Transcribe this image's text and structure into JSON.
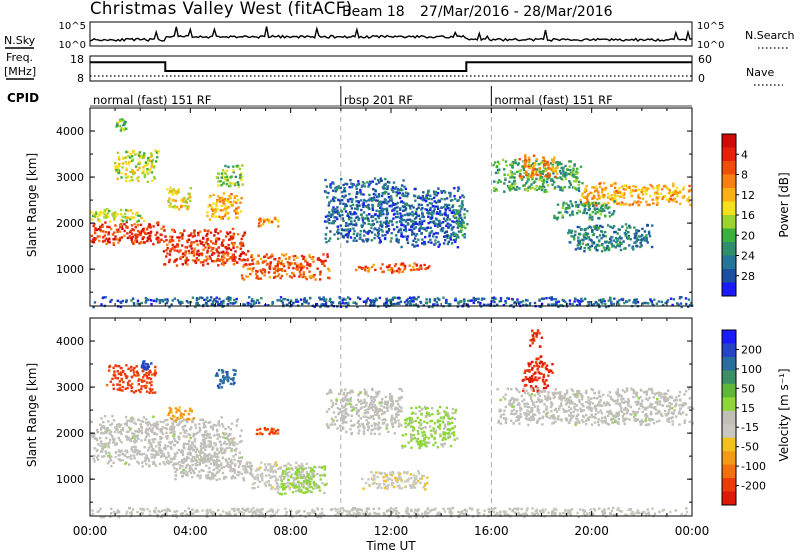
{
  "header": {
    "title": "Christmas Valley West (fitACF)",
    "beam": "Beam 18",
    "date_range": "27/Mar/2016 - 28/Mar/2016"
  },
  "nsky": {
    "left_label": "N.Sky",
    "right_label": "N.Search",
    "left_ticks": [
      "10^5",
      "10^0"
    ],
    "right_ticks": [
      "10^5",
      "10^0"
    ]
  },
  "freq": {
    "left_label_1": "Freq.",
    "left_label_2": "[MHz]",
    "left_ticks": [
      "18",
      "8"
    ],
    "right_ticks": [
      "60",
      "0"
    ],
    "right_label": "Nave"
  },
  "cpid": {
    "label": "CPID",
    "segments": [
      {
        "start_h": 0,
        "end_h": 10,
        "text": "normal (fast) 151 RF"
      },
      {
        "start_h": 10,
        "end_h": 16,
        "text": "rbsp 201 RF"
      },
      {
        "start_h": 16,
        "end_h": 24,
        "text": "normal (fast) 151 RF"
      }
    ]
  },
  "axes": {
    "ylabel": "Slant Range [km]",
    "xlabel": "Time UT",
    "x_ticks": [
      "00:00",
      "04:00",
      "08:00",
      "12:00",
      "16:00",
      "20:00",
      "00:00"
    ],
    "y_ticks": [
      "1000",
      "2000",
      "3000",
      "4000"
    ]
  },
  "colorbars": {
    "power": {
      "label": "Power [dB]",
      "ticks": [
        "4",
        "8",
        "12",
        "16",
        "20",
        "24",
        "28"
      ],
      "colors": [
        "#1a1aff",
        "#1c4fa0",
        "#23769a",
        "#2f8f6c",
        "#3cb03c",
        "#9cd32c",
        "#f5e11b",
        "#fbb116",
        "#f88010",
        "#f04d0a",
        "#e82008",
        "#d20a06"
      ]
    },
    "velocity": {
      "label": "Velocity [m s⁻¹]",
      "ticks": [
        "200",
        "100",
        "50",
        "15",
        "-15",
        "-50",
        "-100",
        "-200"
      ],
      "colors": [
        "#1a1aff",
        "#2544c8",
        "#2a6ea0",
        "#3b8f64",
        "#5fb83a",
        "#8fd63a",
        "#c0c0b8",
        "#c8c8c0",
        "#f2c21c",
        "#f59a14",
        "#f2700e",
        "#ec3a0a",
        "#e01808"
      ]
    }
  },
  "chart_data": [
    {
      "type": "line",
      "title": "N.Sky / N.Search",
      "x_range_hours": [
        0,
        24
      ],
      "y_scale": "log",
      "ylim": [
        "10^0",
        "10^5"
      ]
    },
    {
      "type": "line",
      "title": "Freq. [MHz] / Nave",
      "x_range_hours": [
        0,
        24
      ],
      "ylim_freq_mhz": [
        8,
        18
      ],
      "ylim_nave": [
        0,
        60
      ],
      "series": [
        {
          "name": "Freq.",
          "points": [
            [
              0,
              15.5
            ],
            [
              3,
              15.5
            ],
            [
              3,
              12
            ],
            [
              15,
              12
            ],
            [
              15,
              15.5
            ],
            [
              24,
              15.5
            ]
          ]
        },
        {
          "name": "Nave",
          "points": [
            [
              0,
              12
            ],
            [
              24,
              12
            ]
          ]
        }
      ]
    },
    {
      "type": "heatmap",
      "title": "Power [dB]",
      "x_range_hours": [
        0,
        24
      ],
      "ylim_km": [
        200,
        4500
      ],
      "value_range": [
        0,
        30
      ],
      "cmap_ticks": [
        4,
        8,
        12,
        16,
        20,
        24,
        28
      ],
      "features": [
        {
          "t0": 0.0,
          "t1": 2.9,
          "r0": 1550,
          "r1": 2050,
          "value": 26
        },
        {
          "t0": 0.0,
          "t1": 2.2,
          "r0": 2050,
          "r1": 2350,
          "value": 16
        },
        {
          "t0": 2.9,
          "t1": 6.3,
          "r0": 1100,
          "r1": 1900,
          "value": 26
        },
        {
          "t0": 3.0,
          "t1": 4.0,
          "r0": 2300,
          "r1": 2800,
          "value": 18
        },
        {
          "t0": 4.6,
          "t1": 6.0,
          "r0": 2100,
          "r1": 2700,
          "value": 20
        },
        {
          "t0": 0.9,
          "t1": 2.7,
          "r0": 2900,
          "r1": 3600,
          "value": 16
        },
        {
          "t0": 1.0,
          "t1": 1.4,
          "r0": 4000,
          "r1": 4300,
          "value": 14
        },
        {
          "t0": 5.0,
          "t1": 6.1,
          "r0": 2800,
          "r1": 3300,
          "value": 14
        },
        {
          "t0": 6.0,
          "t1": 9.5,
          "r0": 800,
          "r1": 1350,
          "value": 24
        },
        {
          "t0": 6.6,
          "t1": 7.6,
          "r0": 1950,
          "r1": 2150,
          "value": 22
        },
        {
          "t0": 9.3,
          "t1": 12.6,
          "r0": 1600,
          "r1": 3000,
          "value": 6
        },
        {
          "t0": 12.3,
          "t1": 14.9,
          "r0": 1500,
          "r1": 2800,
          "value": 6
        },
        {
          "t0": 10.5,
          "t1": 13.5,
          "r0": 950,
          "r1": 1150,
          "value": 24
        },
        {
          "t0": 14.5,
          "t1": 15.0,
          "r0": 1700,
          "r1": 2400,
          "value": 10
        },
        {
          "t0": 16.0,
          "t1": 19.6,
          "r0": 2700,
          "r1": 3400,
          "value": 12
        },
        {
          "t0": 17.0,
          "t1": 18.6,
          "r0": 3000,
          "r1": 3500,
          "value": 22
        },
        {
          "t0": 19.5,
          "t1": 24.0,
          "r0": 2400,
          "r1": 2900,
          "value": 20
        },
        {
          "t0": 19.0,
          "t1": 22.4,
          "r0": 1400,
          "r1": 2000,
          "value": 8
        },
        {
          "t0": 18.4,
          "t1": 21.0,
          "r0": 2100,
          "r1": 2500,
          "value": 10
        },
        {
          "t0": 0.0,
          "t1": 24.0,
          "r0": 200,
          "r1": 420,
          "value": 6
        }
      ]
    },
    {
      "type": "heatmap",
      "title": "Velocity [m s-1]",
      "x_range_hours": [
        0,
        24
      ],
      "ylim_km": [
        200,
        4500
      ],
      "value_range": [
        -250,
        250
      ],
      "cmap_ticks": [
        200,
        100,
        50,
        15,
        -15,
        -50,
        -100,
        -200
      ],
      "features": [
        {
          "t0": 0.0,
          "t1": 6.0,
          "r0": 1300,
          "r1": 2400,
          "value": 0
        },
        {
          "t0": 3.2,
          "t1": 6.6,
          "r0": 1000,
          "r1": 1500,
          "value": 0
        },
        {
          "t0": 6.4,
          "t1": 9.0,
          "r0": 800,
          "r1": 1400,
          "value": -40
        },
        {
          "t0": 7.4,
          "t1": 9.4,
          "r0": 700,
          "r1": 1300,
          "value": 30
        },
        {
          "t0": 6.6,
          "t1": 7.5,
          "r0": 1950,
          "r1": 2150,
          "value": -180
        },
        {
          "t0": 0.6,
          "t1": 2.6,
          "r0": 2900,
          "r1": 3500,
          "value": -190
        },
        {
          "t0": 2.0,
          "t1": 2.4,
          "r0": 3400,
          "r1": 3600,
          "value": 190
        },
        {
          "t0": 4.9,
          "t1": 5.8,
          "r0": 3000,
          "r1": 3400,
          "value": 160
        },
        {
          "t0": 3.0,
          "t1": 4.1,
          "r0": 2300,
          "r1": 2600,
          "value": -110
        },
        {
          "t0": 10.8,
          "t1": 13.4,
          "r0": 800,
          "r1": 1200,
          "value": -50
        },
        {
          "t0": 9.4,
          "t1": 12.4,
          "r0": 2000,
          "r1": 3000,
          "value": 0
        },
        {
          "t0": 12.4,
          "t1": 14.6,
          "r0": 1700,
          "r1": 2600,
          "value": 30
        },
        {
          "t0": 17.2,
          "t1": 18.4,
          "r0": 2900,
          "r1": 3700,
          "value": -210
        },
        {
          "t0": 16.2,
          "t1": 24.0,
          "r0": 2200,
          "r1": 3000,
          "value": 0
        },
        {
          "t0": 17.5,
          "t1": 18.0,
          "r0": 3900,
          "r1": 4300,
          "value": -210
        },
        {
          "t0": 0.0,
          "t1": 24.0,
          "r0": 200,
          "r1": 400,
          "value": -20
        }
      ]
    }
  ]
}
